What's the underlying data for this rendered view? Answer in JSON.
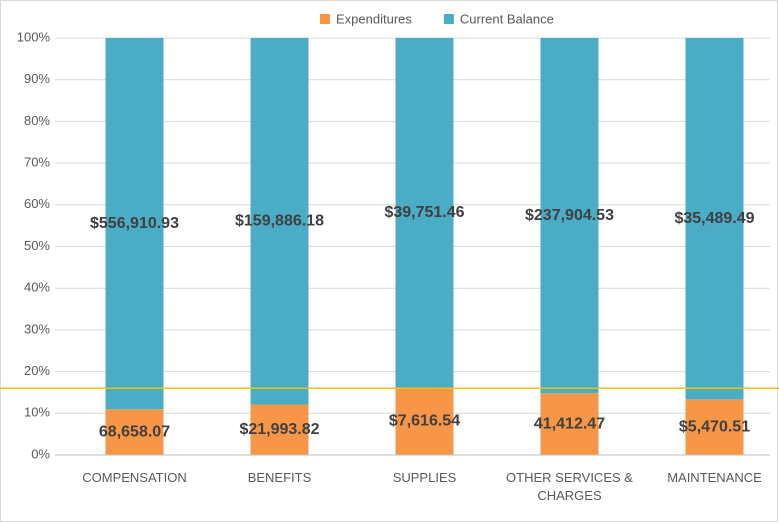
{
  "chart_data": {
    "type": "bar",
    "percent_stacked": true,
    "categories": [
      "COMPENSATION",
      "BENEFITS",
      "SUPPLIES",
      "OTHER SERVICES & CHARGES",
      "MAINTENANCE"
    ],
    "series": [
      {
        "name": "Expenditures",
        "color": "#f79646",
        "values": [
          68658.07,
          21993.82,
          7616.54,
          41412.47,
          5470.51
        ],
        "value_labels": [
          "68,658.07",
          "$21,993.82",
          "$7,616.54",
          "41,412.47",
          "$5,470.51"
        ]
      },
      {
        "name": "Current Balance",
        "color": "#4bacc6",
        "values": [
          556910.93,
          159886.18,
          39751.46,
          237904.53,
          35489.49
        ],
        "value_labels": [
          "$556,910.93",
          "$159,886.18",
          "$39,751.46",
          "$237,904.53",
          "$35,489.49"
        ]
      }
    ],
    "ylim": [
      0,
      100
    ],
    "yticks": [
      {
        "value": 0,
        "label": "0%"
      },
      {
        "value": 10,
        "label": "10%"
      },
      {
        "value": 20,
        "label": "20%"
      },
      {
        "value": 30,
        "label": "30%"
      },
      {
        "value": 40,
        "label": "40%"
      },
      {
        "value": 50,
        "label": "50%"
      },
      {
        "value": 60,
        "label": "60%"
      },
      {
        "value": 70,
        "label": "70%"
      },
      {
        "value": 80,
        "label": "80%"
      },
      {
        "value": 90,
        "label": "90%"
      },
      {
        "value": 100,
        "label": "100%"
      }
    ],
    "grid": true,
    "legend": "top",
    "reference_line": {
      "value": 16,
      "color": "#f2c200"
    }
  }
}
